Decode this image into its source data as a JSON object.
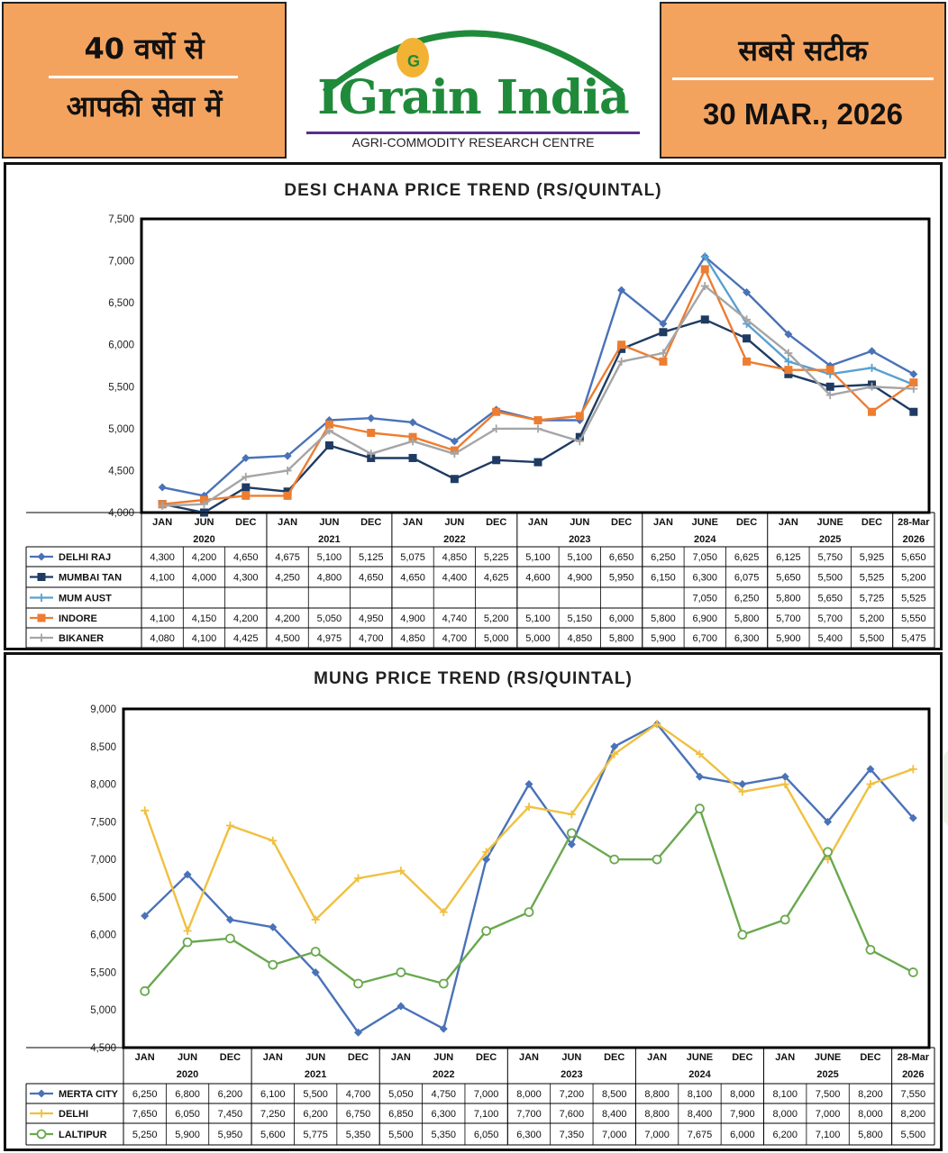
{
  "header": {
    "left_line1": "40 वर्षो से",
    "left_line2": "आपकी सेवा में",
    "logo_text": "IGrain India",
    "logo_subtitle": "AGRI-COMMODITY RESEARCH CENTRE",
    "right_line1": "सबसे सटीक",
    "date": "30 MAR., 2026",
    "colors": {
      "orange": "#f4a35e",
      "green": "#1f8a3a",
      "purple": "#5c2d8a"
    }
  },
  "watermark": "IGrain India",
  "periods": [
    "JAN",
    "JUN",
    "DEC",
    "JAN",
    "JUN",
    "DEC",
    "JAN",
    "JUN",
    "DEC",
    "JAN",
    "JUN",
    "DEC",
    "JAN",
    "JUNE",
    "DEC",
    "JAN",
    "JUNE",
    "DEC",
    "28-Mar"
  ],
  "year_groups": [
    {
      "label": "2020",
      "start": 0,
      "end": 2
    },
    {
      "label": "2021",
      "start": 3,
      "end": 5
    },
    {
      "label": "2022",
      "start": 6,
      "end": 8
    },
    {
      "label": "2023",
      "start": 9,
      "end": 11
    },
    {
      "label": "2024",
      "start": 12,
      "end": 14
    },
    {
      "label": "2025",
      "start": 15,
      "end": 17
    },
    {
      "label": "2026",
      "start": 18,
      "end": 18
    }
  ],
  "chart_data": [
    {
      "type": "line",
      "title": "DESI CHANA PRICE TREND (RS/QUINTAL)",
      "ylim": [
        4000,
        7500
      ],
      "yticks": [
        4000,
        4500,
        5000,
        5500,
        6000,
        6500,
        7000,
        7500
      ],
      "grid": false,
      "legend": "table below chart",
      "series": [
        {
          "name": "DELHI RAJ",
          "color": "#4a72b8",
          "marker": "diamond",
          "values": [
            4300,
            4200,
            4650,
            4675,
            5100,
            5125,
            5075,
            4850,
            5225,
            5100,
            5100,
            6650,
            6250,
            7050,
            6625,
            6125,
            5750,
            5925,
            5650
          ]
        },
        {
          "name": "MUMBAI TAN",
          "color": "#1f3b63",
          "marker": "square",
          "values": [
            4100,
            4000,
            4300,
            4250,
            4800,
            4650,
            4650,
            4400,
            4625,
            4600,
            4900,
            5950,
            6150,
            6300,
            6075,
            5650,
            5500,
            5525,
            5200
          ]
        },
        {
          "name": "MUM AUST",
          "color": "#5aa0d0",
          "marker": "plus",
          "values": [
            null,
            null,
            null,
            null,
            null,
            null,
            null,
            null,
            null,
            null,
            null,
            null,
            null,
            7050,
            6250,
            5800,
            5650,
            5725,
            5525
          ]
        },
        {
          "name": "INDORE",
          "color": "#ed7d31",
          "marker": "square",
          "values": [
            4100,
            4150,
            4200,
            4200,
            5050,
            4950,
            4900,
            4740,
            5200,
            5100,
            5150,
            6000,
            5800,
            6900,
            5800,
            5700,
            5700,
            5200,
            5550
          ]
        },
        {
          "name": "BIKANER",
          "color": "#a5a5a5",
          "marker": "plus",
          "values": [
            4080,
            4100,
            4425,
            4500,
            4975,
            4700,
            4850,
            4700,
            5000,
            5000,
            4850,
            5800,
            5900,
            6700,
            6300,
            5900,
            5400,
            5500,
            5475
          ]
        }
      ]
    },
    {
      "type": "line",
      "title": "MUNG PRICE TREND (RS/QUINTAL)",
      "ylim": [
        4500,
        9000
      ],
      "yticks": [
        4500,
        5000,
        5500,
        6000,
        6500,
        7000,
        7500,
        8000,
        8500,
        9000
      ],
      "grid": false,
      "legend": "table below chart",
      "series": [
        {
          "name": "MERTA CITY",
          "color": "#4a72b8",
          "marker": "diamond",
          "values": [
            6250,
            6800,
            6200,
            6100,
            5500,
            4700,
            5050,
            4750,
            7000,
            8000,
            7200,
            8500,
            8800,
            8100,
            8000,
            8100,
            7500,
            8200,
            7550
          ]
        },
        {
          "name": "DELHI",
          "color": "#f0c040",
          "marker": "plus",
          "values": [
            7650,
            6050,
            7450,
            7250,
            6200,
            6750,
            6850,
            6300,
            7100,
            7700,
            7600,
            8400,
            8800,
            8400,
            7900,
            8000,
            7000,
            8000,
            8200
          ]
        },
        {
          "name": "LALTIPUR",
          "color": "#6aa84f",
          "marker": "circle",
          "values": [
            5250,
            5900,
            5950,
            5600,
            5775,
            5350,
            5500,
            5350,
            6050,
            6300,
            7350,
            7000,
            7000,
            7675,
            6000,
            6200,
            7100,
            5800,
            5500
          ]
        }
      ]
    }
  ]
}
